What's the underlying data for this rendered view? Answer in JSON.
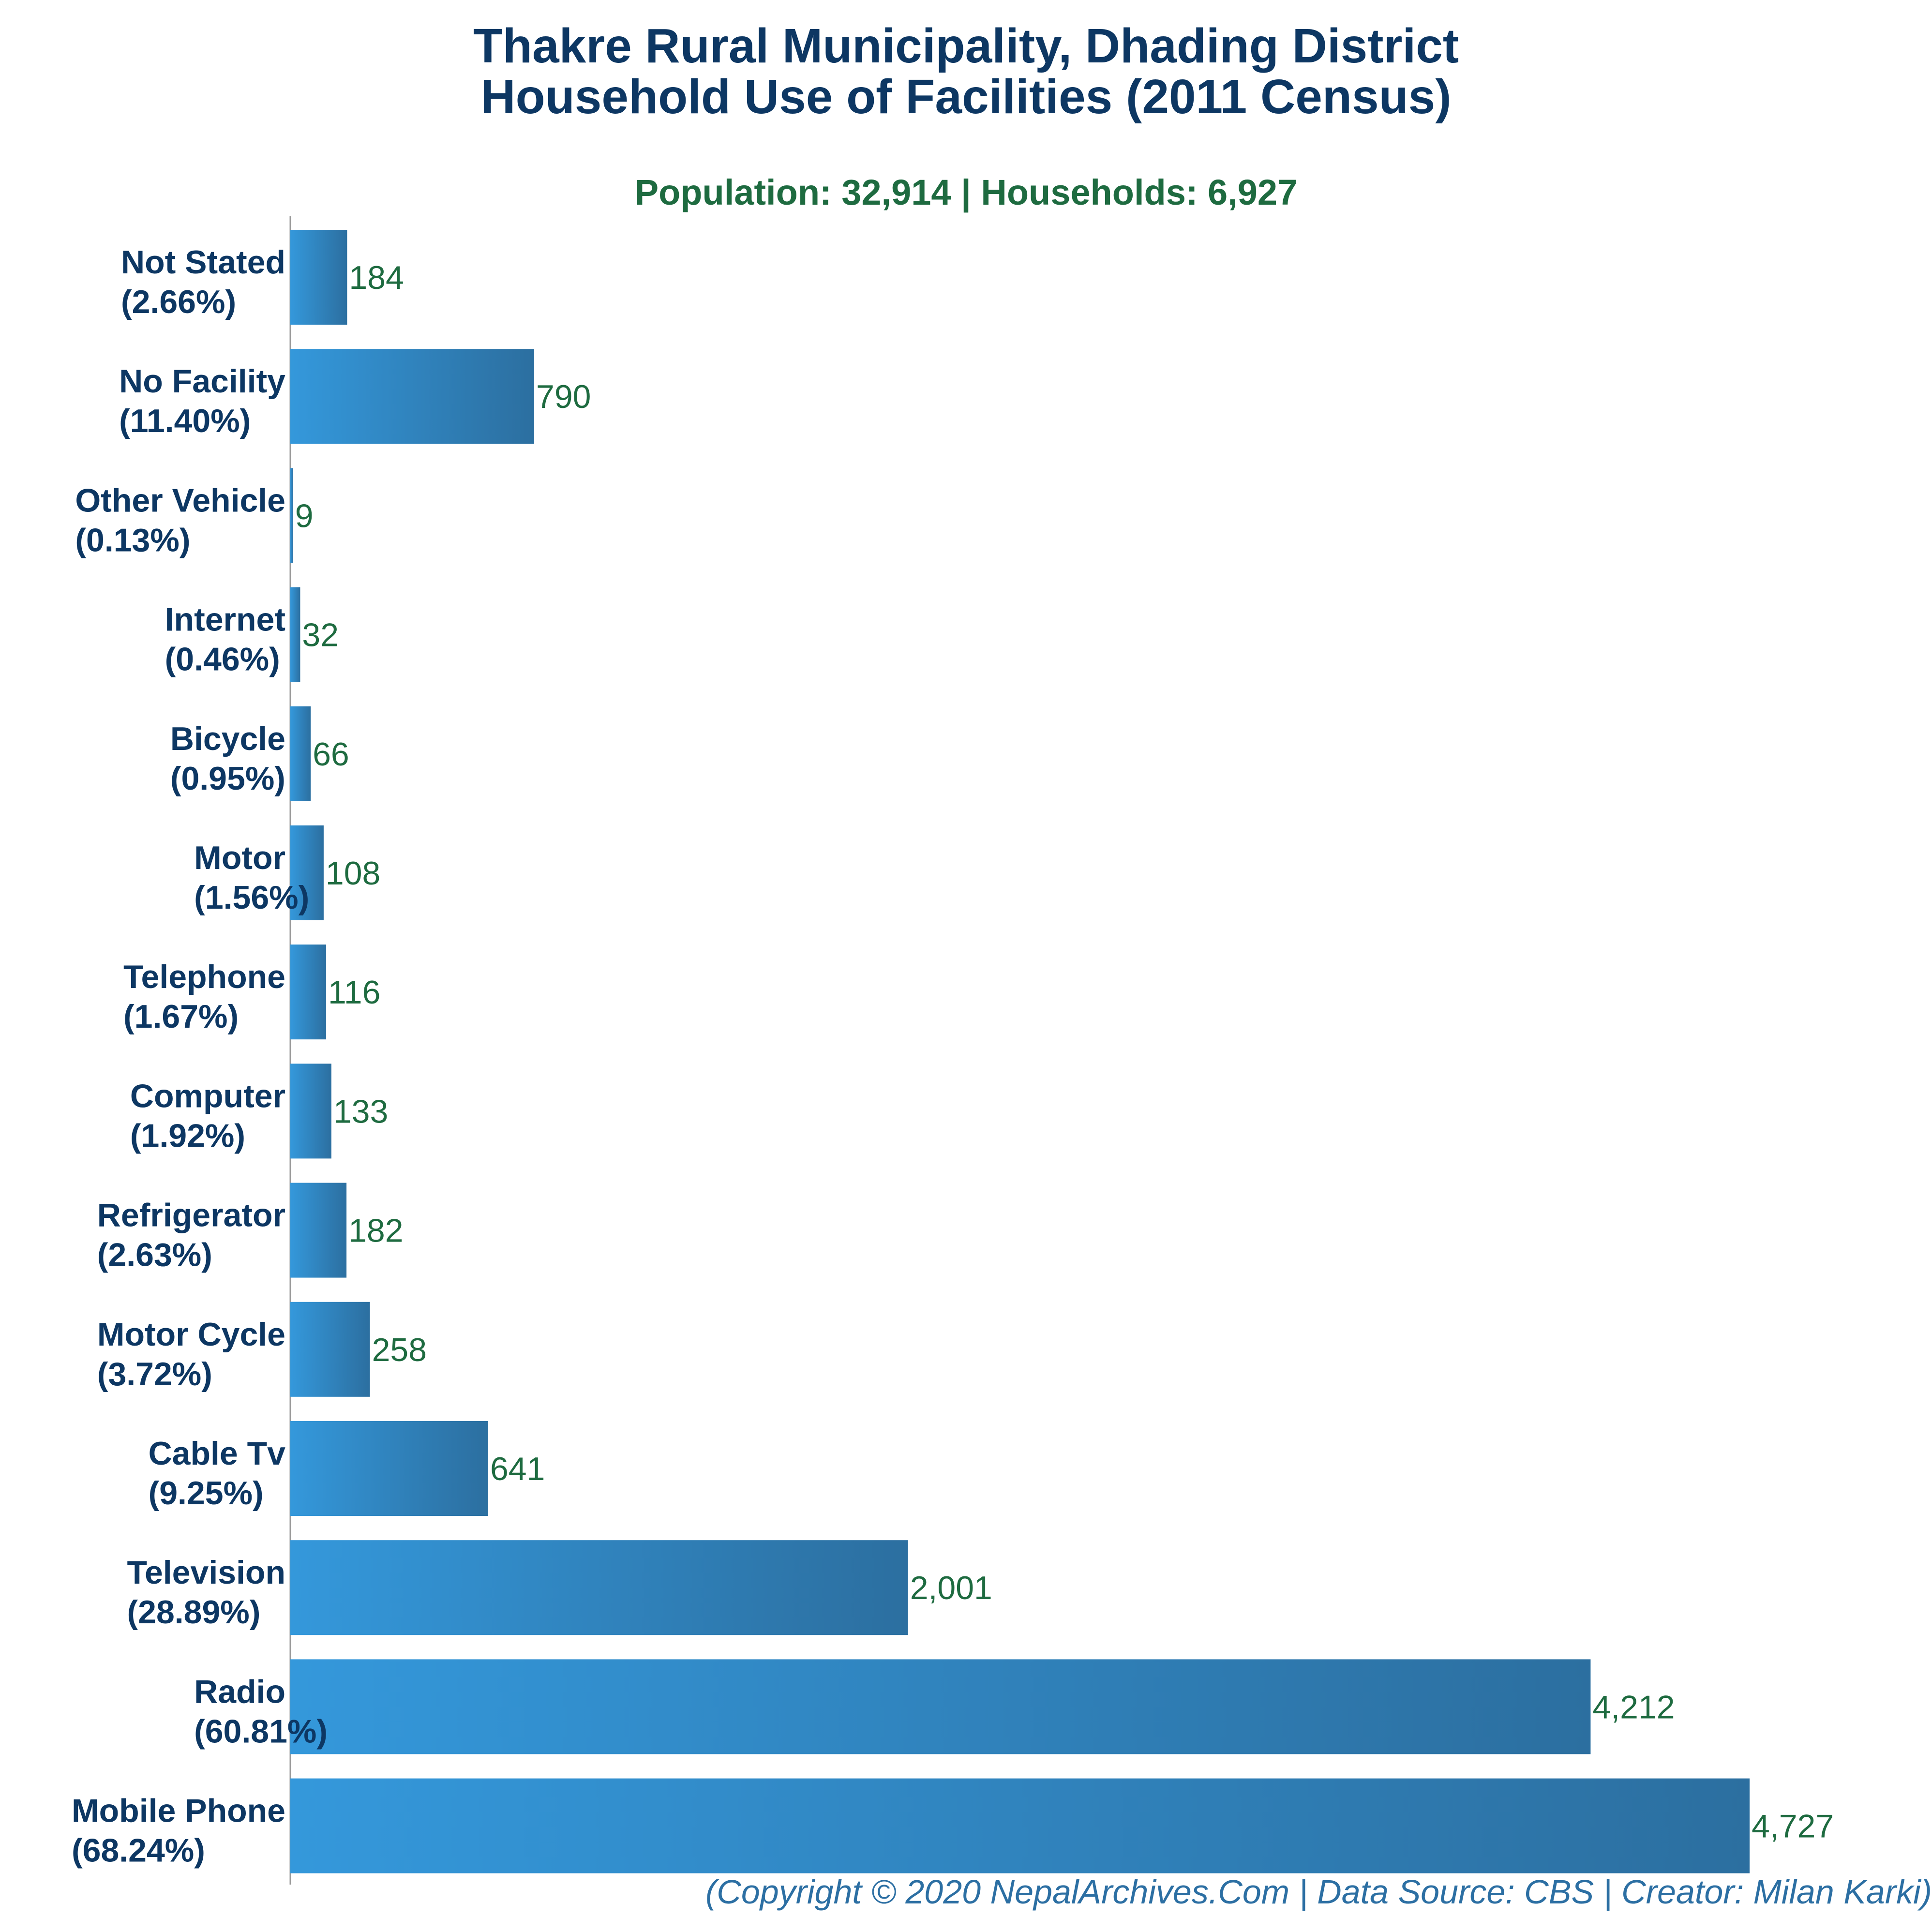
{
  "chart_data": {
    "type": "bar",
    "orientation": "horizontal",
    "title": [
      "Thakre Rural Municipality, Dhading District",
      "Household Use of Facilities (2011 Census)"
    ],
    "subtitle": "Population: 32,914 | Households: 6,927",
    "categories": [
      {
        "name": "Not Stated",
        "pct": "(2.66%)",
        "value": 184,
        "label": "184"
      },
      {
        "name": "No Facility",
        "pct": "(11.40%)",
        "value": 790,
        "label": "790"
      },
      {
        "name": "Other Vehicle",
        "pct": "(0.13%)",
        "value": 9,
        "label": "9"
      },
      {
        "name": "Internet",
        "pct": "(0.46%)",
        "value": 32,
        "label": "32"
      },
      {
        "name": "Bicycle",
        "pct": "(0.95%)",
        "value": 66,
        "label": "66"
      },
      {
        "name": "Motor",
        "pct": "(1.56%)",
        "value": 108,
        "label": "108"
      },
      {
        "name": "Telephone",
        "pct": "(1.67%)",
        "value": 116,
        "label": "116"
      },
      {
        "name": "Computer",
        "pct": "(1.92%)",
        "value": 133,
        "label": "133"
      },
      {
        "name": "Refrigerator",
        "pct": "(2.63%)",
        "value": 182,
        "label": "182"
      },
      {
        "name": "Motor Cycle",
        "pct": "(3.72%)",
        "value": 258,
        "label": "258"
      },
      {
        "name": "Cable Tv",
        "pct": "(9.25%)",
        "value": 641,
        "label": "641"
      },
      {
        "name": "Television",
        "pct": "(28.89%)",
        "value": 2001,
        "label": "2,001"
      },
      {
        "name": "Radio",
        "pct": "(60.81%)",
        "value": 4212,
        "label": "4,212"
      },
      {
        "name": "Mobile Phone",
        "pct": "(68.24%)",
        "value": 4727,
        "label": "4,727"
      }
    ],
    "xlim": [
      0,
      4727
    ],
    "grid": false,
    "legend": "none",
    "colors": {
      "bar_light": "#3498db",
      "bar_dark": "#2c6fa0",
      "title": "#0d3763",
      "subtitle": "#1e6b40",
      "value_label": "#1e6b40",
      "footer": "#2c6fa3",
      "axis": "#999999"
    }
  },
  "footer": "(Copyright © 2020 NepalArchives.Com | Data Source: CBS | Creator: Milan Karki)"
}
